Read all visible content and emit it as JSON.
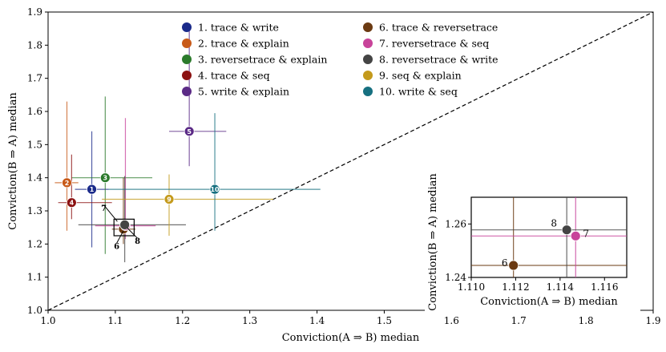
{
  "chart_data": {
    "type": "scatter",
    "title": "",
    "xlabel": "Conviction(A ⇒ B) median",
    "ylabel": "Conviction(B ⇒ A) median",
    "xlim": [
      1.0,
      1.9
    ],
    "ylim": [
      1.0,
      1.9
    ],
    "xticks": [
      "1.0",
      "1.1",
      "1.2",
      "1.3",
      "1.4",
      "1.5",
      "1.6",
      "1.7",
      "1.8",
      "1.9"
    ],
    "yticks": [
      "1.0",
      "1.1",
      "1.2",
      "1.3",
      "1.4",
      "1.5",
      "1.6",
      "1.7",
      "1.8",
      "1.9"
    ],
    "diagonal": "y = x (dashed)",
    "legend_location": "top-center",
    "series": [
      {
        "id": 1,
        "label": "1. trace & write",
        "color": "#1a2a8a",
        "x": 1.065,
        "y": 1.365,
        "x_range": [
          1.04,
          1.09
        ],
        "y_range": [
          1.19,
          1.54
        ]
      },
      {
        "id": 2,
        "label": "2. trace & explain",
        "color": "#c85a19",
        "x": 1.028,
        "y": 1.385,
        "x_range": [
          1.01,
          1.045
        ],
        "y_range": [
          1.24,
          1.63
        ]
      },
      {
        "id": 3,
        "label": "3. reversetrace & explain",
        "color": "#2b7a2b",
        "x": 1.085,
        "y": 1.4,
        "x_range": [
          1.035,
          1.155
        ],
        "y_range": [
          1.17,
          1.645
        ]
      },
      {
        "id": 4,
        "label": "4. trace & seq",
        "color": "#8b1111",
        "x": 1.035,
        "y": 1.325,
        "x_range": [
          1.015,
          1.095
        ],
        "y_range": [
          1.275,
          1.47
        ]
      },
      {
        "id": 5,
        "label": "5. write & explain",
        "color": "#5b2a86",
        "x": 1.21,
        "y": 1.54,
        "x_range": [
          1.18,
          1.265
        ],
        "y_range": [
          1.435,
          1.855
        ]
      },
      {
        "id": 6,
        "label": "6. trace & reversetrace",
        "color": "#6b3a12",
        "x": 1.112,
        "y": 1.245,
        "x_range": [
          1.095,
          1.13
        ],
        "y_range": [
          1.2,
          1.4
        ]
      },
      {
        "id": 7,
        "label": "7. reversetrace & seq",
        "color": "#c8439a",
        "x": 1.115,
        "y": 1.255,
        "x_range": [
          1.07,
          1.16
        ],
        "y_range": [
          1.215,
          1.58
        ]
      },
      {
        "id": 8,
        "label": "8. reversetrace & write",
        "color": "#444444",
        "x": 1.114,
        "y": 1.258,
        "x_range": [
          1.045,
          1.205
        ],
        "y_range": [
          1.145,
          1.405
        ]
      },
      {
        "id": 9,
        "label": "9. seq & explain",
        "color": "#c49a1c",
        "x": 1.18,
        "y": 1.335,
        "x_range": [
          1.08,
          1.335
        ],
        "y_range": [
          1.225,
          1.41
        ]
      },
      {
        "id": 10,
        "label": "10. write & seq",
        "color": "#167080",
        "x": 1.248,
        "y": 1.365,
        "x_range": [
          1.09,
          1.405
        ],
        "y_range": [
          1.24,
          1.595
        ]
      }
    ],
    "annotations": [
      "6",
      "7",
      "8"
    ],
    "inset": {
      "xlabel": "Conviction(A ⇒ B) median",
      "ylabel": "Conviction(B ⇒ A) median",
      "xlim": [
        1.11,
        1.117
      ],
      "ylim": [
        1.24,
        1.27
      ],
      "xticks": [
        "1.110",
        "1.112",
        "1.114",
        "1.116"
      ],
      "yticks": [
        "1.24",
        "1.26"
      ],
      "points": [
        {
          "id": 6,
          "label": "6",
          "color": "#6b3a12",
          "x": 1.1119,
          "y": 1.2445
        },
        {
          "id": 7,
          "label": "7",
          "color": "#c8439a",
          "x": 1.1147,
          "y": 1.2555
        },
        {
          "id": 8,
          "label": "8",
          "color": "#444444",
          "x": 1.1143,
          "y": 1.2578
        }
      ]
    }
  }
}
